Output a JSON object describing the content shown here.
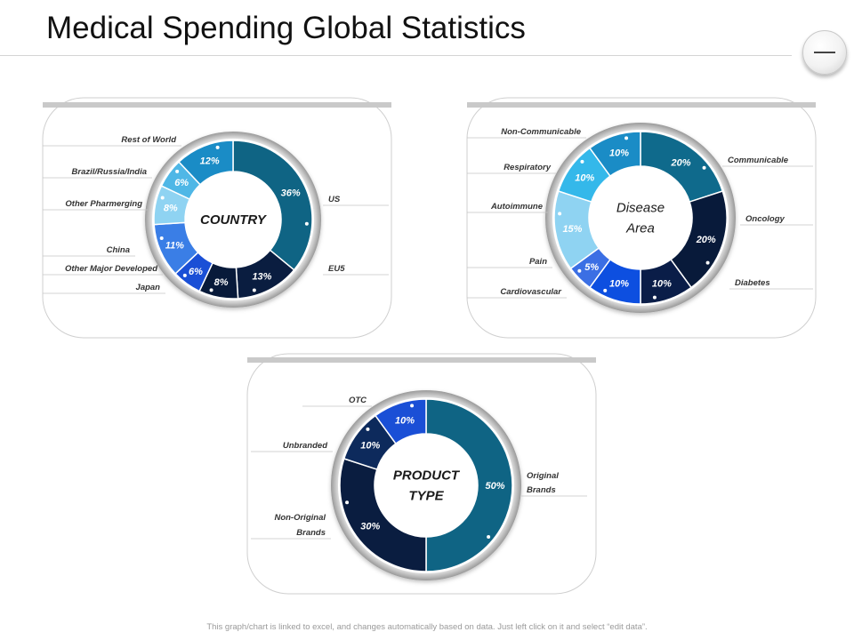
{
  "title": "Medical Spending Global Statistics",
  "footer": "This graph/chart is linked to excel, and changes automatically based on data. Just left click on it and select “edit data”.",
  "chart_data": [
    {
      "type": "pie",
      "center_label": [
        "COUNTRY"
      ],
      "categories": [
        "US",
        "EU5",
        "Japan",
        "Other Major Developed",
        "China",
        "Other Pharmerging",
        "Brazil/Russia/India",
        "Rest of World"
      ],
      "values": [
        36,
        13,
        8,
        6,
        11,
        8,
        6,
        12
      ],
      "value_labels": [
        "36%",
        "13%",
        "8%",
        "6%",
        "11%",
        "8%",
        "6%",
        "12%"
      ],
      "colors": [
        "#0f6484",
        "#0a1d40",
        "#081a3a",
        "#1a4fd6",
        "#3a7ee6",
        "#8fd3f2",
        "#4fb7e6",
        "#1a8cc6"
      ]
    },
    {
      "type": "pie",
      "center_label": [
        "Disease",
        "Area"
      ],
      "categories": [
        "Communicable",
        "Oncology",
        "Diabetes",
        "Cardiovascular",
        "Pain",
        "Autoimmune",
        "Respiratory",
        "Non-Communicable"
      ],
      "values": [
        20,
        20,
        10,
        10,
        5,
        15,
        10,
        10
      ],
      "value_labels": [
        "20%",
        "20%",
        "10%",
        "10%",
        "5%",
        "15%",
        "10%",
        "10%"
      ],
      "colors": [
        "#0f6a8c",
        "#081a3a",
        "#0a1d48",
        "#0d4fe0",
        "#3b6fe4",
        "#8fd3f2",
        "#34b8ea",
        "#1a8cc6"
      ]
    },
    {
      "type": "pie",
      "center_label": [
        "PRODUCT",
        "TYPE"
      ],
      "categories": [
        "Original Brands",
        "Non-Original Brands",
        "Unbranded",
        "OTC"
      ],
      "values": [
        50,
        30,
        10,
        10
      ],
      "value_labels": [
        "50%",
        "30%",
        "10%",
        "10%"
      ],
      "colors": [
        "#0f6484",
        "#0a1d40",
        "#0d2a5c",
        "#1a4fd6"
      ]
    }
  ]
}
